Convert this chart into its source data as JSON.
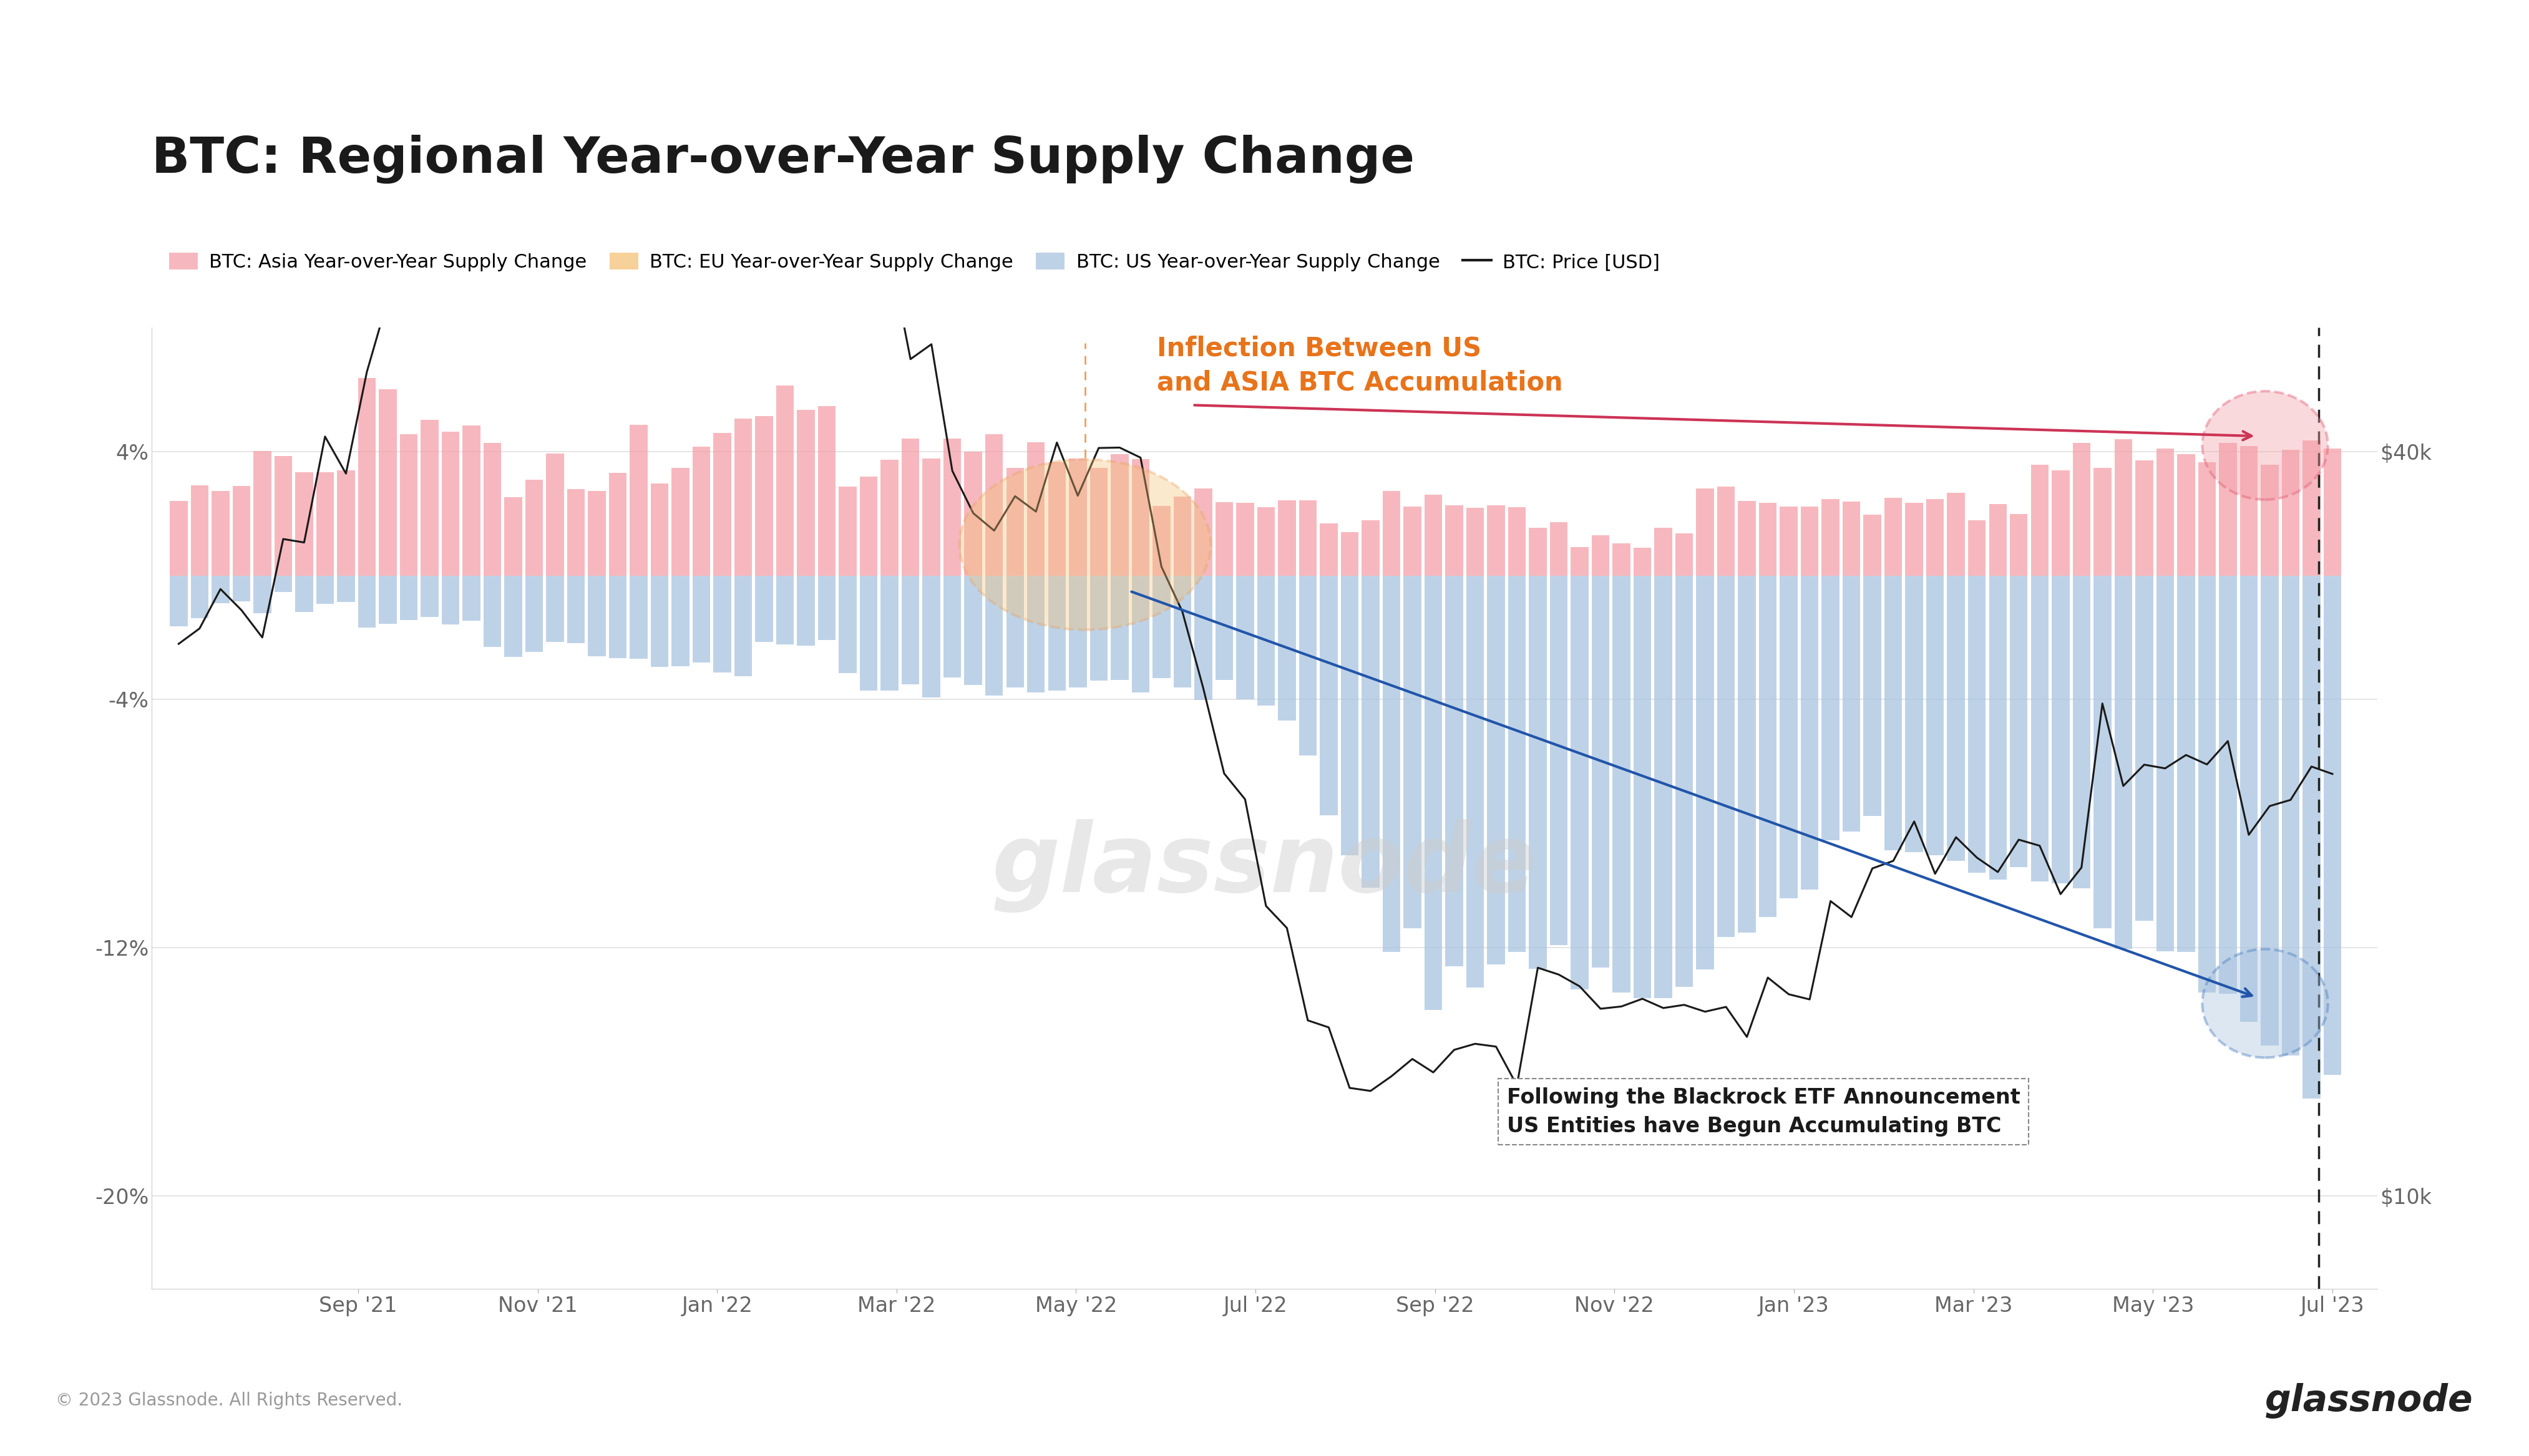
{
  "title": "BTC: Regional Year-over-Year Supply Change",
  "background_color": "#ffffff",
  "plot_bg_color": "#ffffff",
  "legend_items": [
    {
      "label": "BTC: Asia Year-over-Year Supply Change",
      "color": "#f4a0a8"
    },
    {
      "label": "BTC: EU Year-over-Year Supply Change",
      "color": "#f5c278"
    },
    {
      "label": "BTC: US Year-over-Year Supply Change",
      "color": "#a8c4e0"
    },
    {
      "label": "BTC: Price [USD]",
      "color": "#1a1a1a"
    }
  ],
  "yaxis_left": {
    "ticks": [
      "-20%",
      "-12%",
      "-4%",
      "4%"
    ],
    "values": [
      -20,
      -12,
      -4,
      4
    ],
    "ylim": [
      -23,
      8
    ]
  },
  "yaxis_right": {
    "ticks": [
      "$40k",
      "$10k"
    ],
    "values": [
      4.0,
      -20.0
    ],
    "ylim": [
      -23,
      8
    ]
  },
  "xlabel_ticks": [
    "Sep '21",
    "Nov '21",
    "Jan '22",
    "Mar '22",
    "May '22",
    "Jul '22",
    "Sep '22",
    "Nov '22",
    "Jan '23",
    "Mar '23",
    "May '23",
    "Jul '23"
  ],
  "watermark": "glassnode",
  "footer": "© 2023 Glassnode. All Rights Reserved.",
  "footer_right": "glassnode",
  "asia_color": "#f4a0a8",
  "us_color": "#a8c4e0",
  "eu_color": "#f5c278",
  "price_color": "#1a1a1a",
  "annotation1_text": "Inflection Between US\nand ASIA BTC Accumulation",
  "annotation1_color": "#e8731a",
  "annotation2_text": "Following the Blackrock ETF Announcement\nUS Entities have Begun Accumulating BTC",
  "annotation2_color": "#1a1a1a",
  "arrow_asia_color": "#cc3355",
  "arrow_us_color": "#2255aa",
  "orange_circle_color": "#e8a060",
  "pink_circle_color": "#e05570",
  "blue_circle_color": "#4477bb"
}
